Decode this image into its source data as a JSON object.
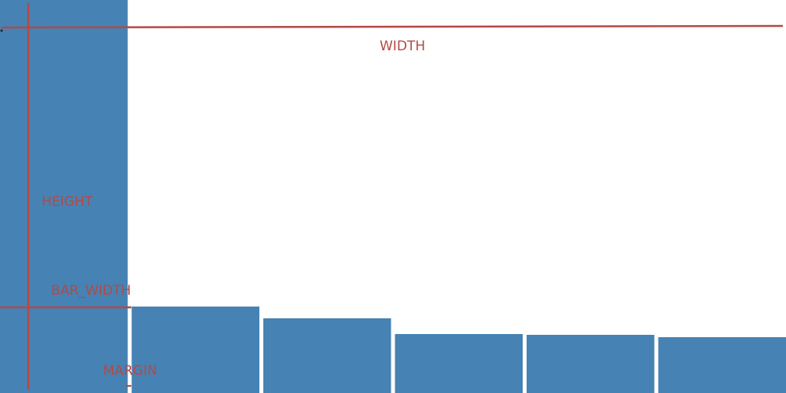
{
  "colors": {
    "bar": "#4682B4",
    "annotation": "#B34A46",
    "background": "#FFFFFF"
  },
  "labels": {
    "width": "WIDTH",
    "height": "HEIGHT",
    "bar_width": "BAR_WIDTH",
    "margin": "MARGIN"
  },
  "bars": {
    "count": 6,
    "relative_heights": [
      1.0,
      0.22,
      0.19,
      0.15,
      0.148,
      0.142
    ]
  }
}
